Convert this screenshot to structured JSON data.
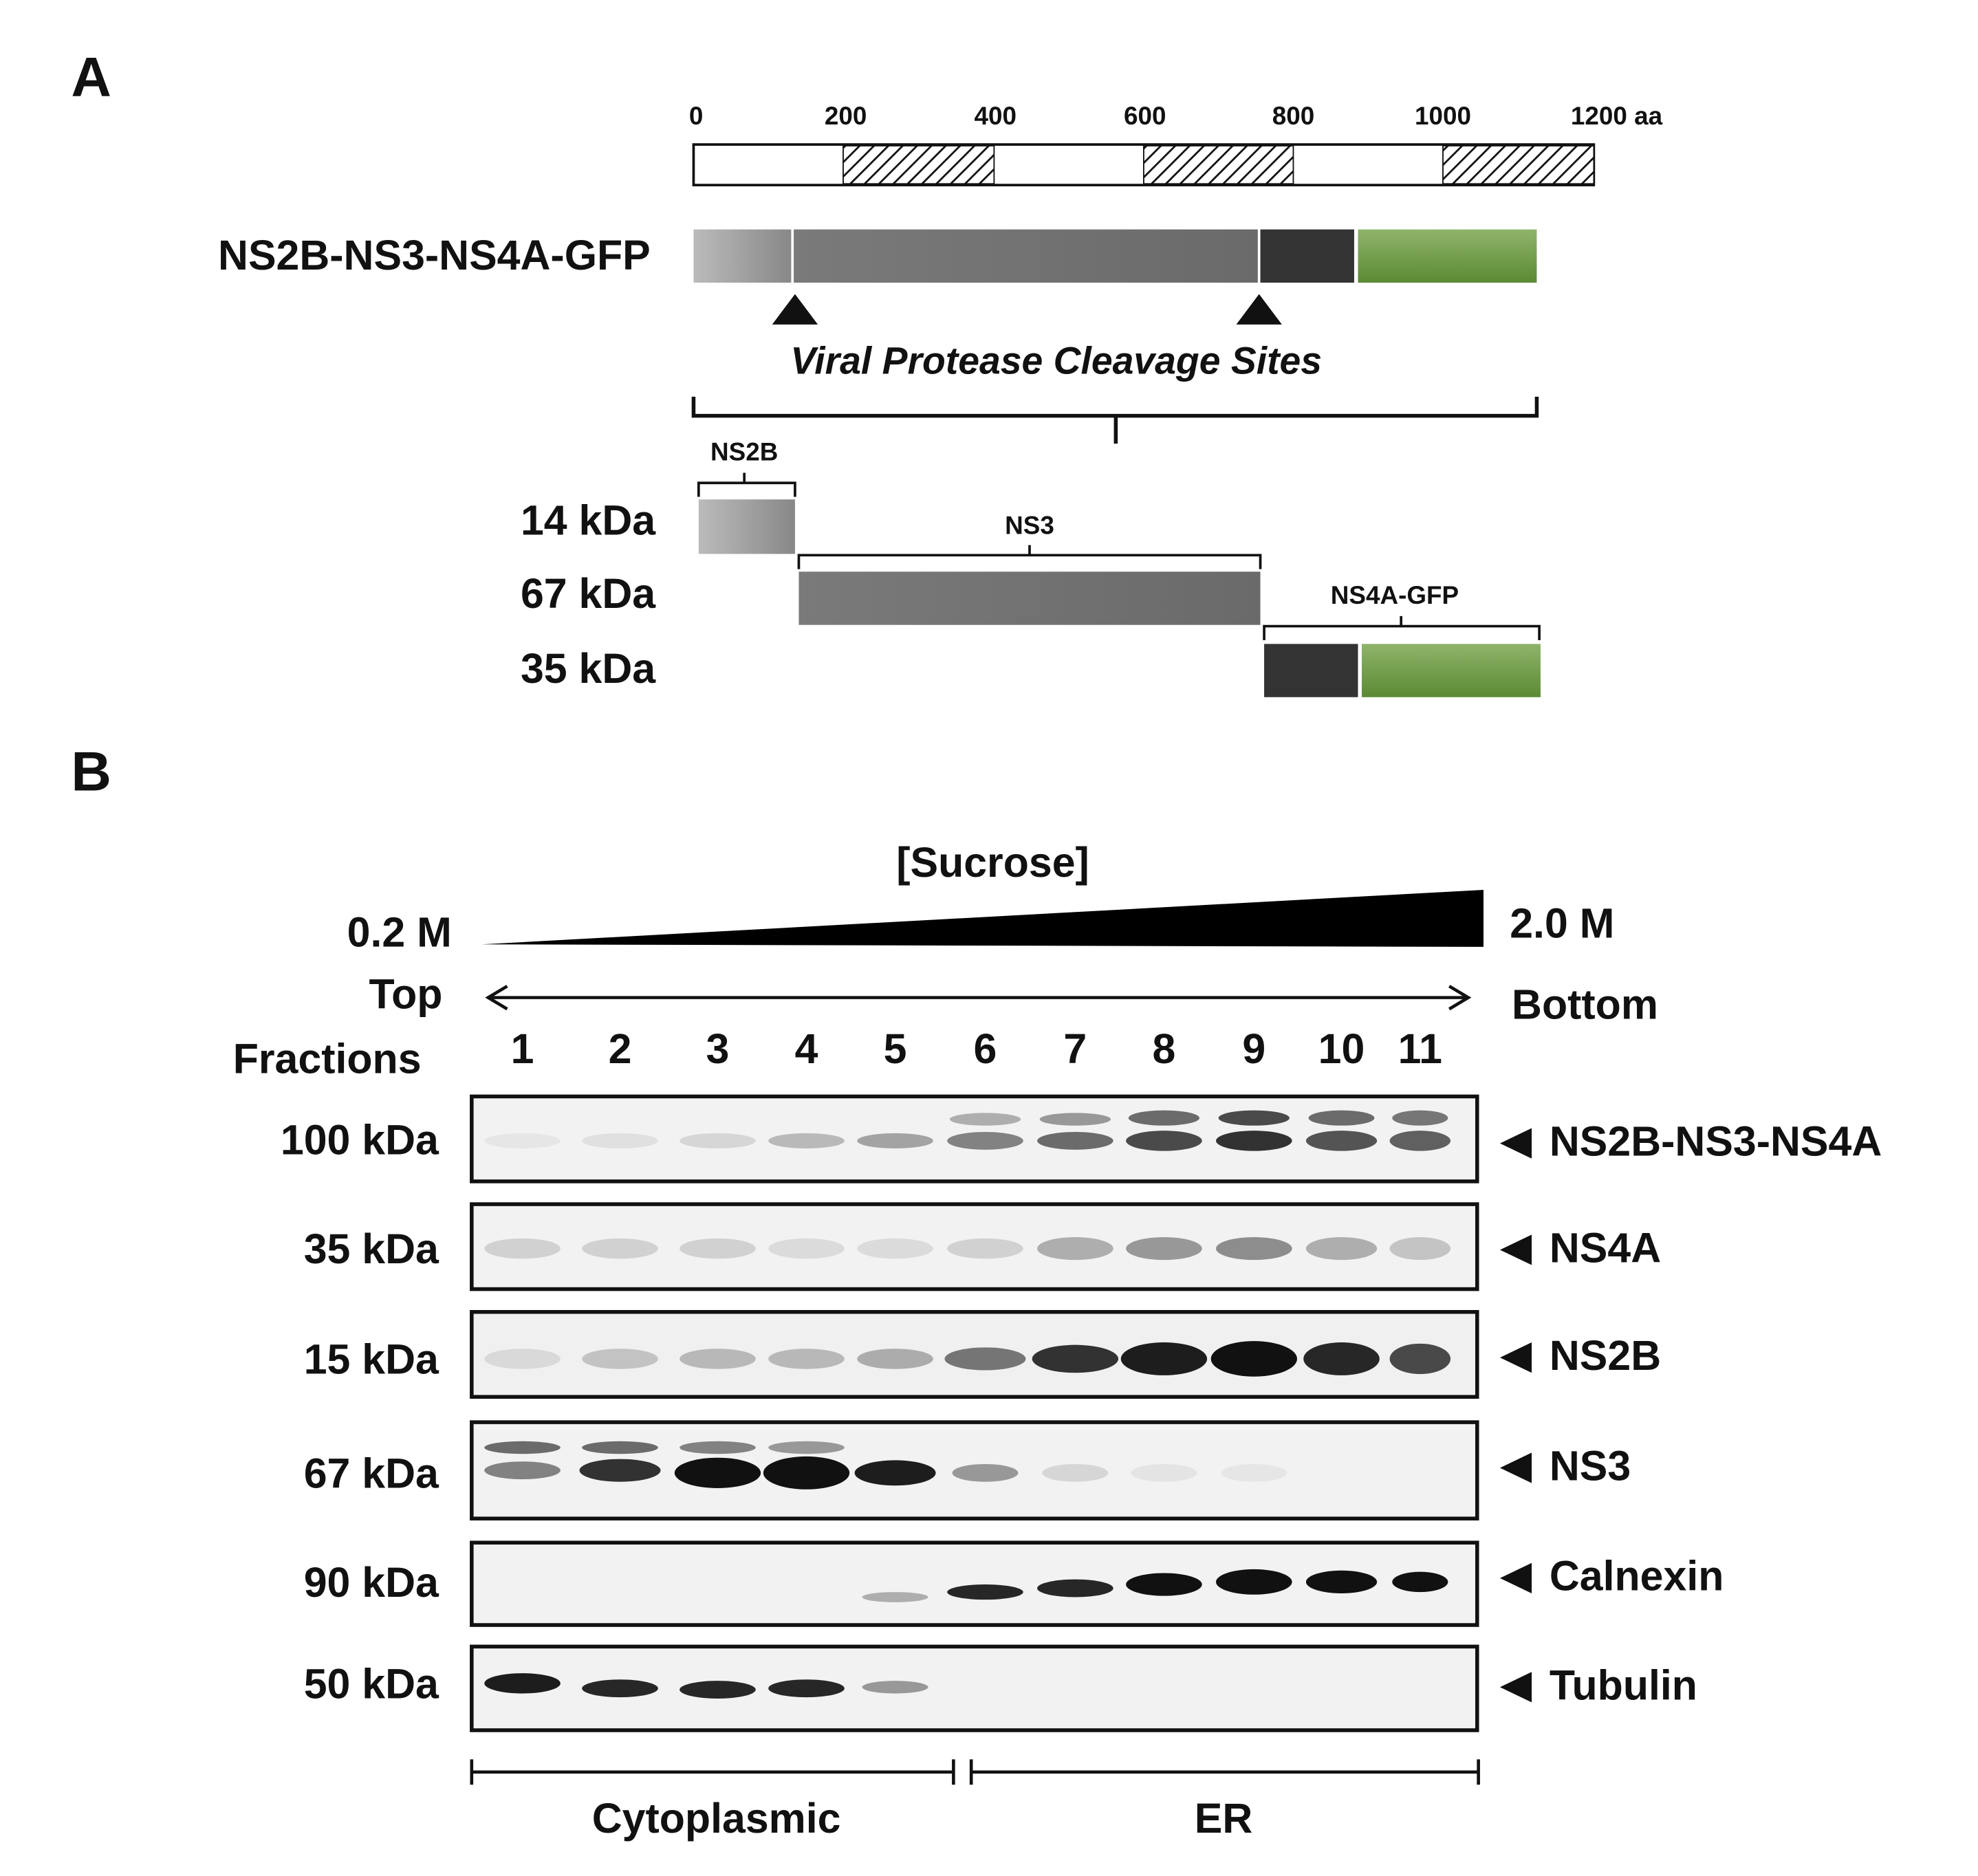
{
  "panel_a": {
    "label": "A",
    "scale_ticks": [
      "0",
      "200",
      "400",
      "600",
      "800",
      "1000",
      "1200 aa"
    ],
    "construct": "NS2B-NS3-NS4A-GFP",
    "cleavage_label": "Viral Protease Cleavage Sites",
    "fragments": [
      {
        "name": "NS2B",
        "size": "14 kDa"
      },
      {
        "name": "NS3",
        "size": "67 kDa"
      },
      {
        "name": "NS4A-GFP",
        "size": "35 kDa"
      }
    ]
  },
  "panel_b": {
    "label": "B",
    "gradient_label": "[Sucrose]",
    "low": "0.2 M",
    "high": "2.0 M",
    "top": "Top",
    "bottom": "Bottom",
    "fractions_label": "Fractions",
    "fractions": [
      "1",
      "2",
      "3",
      "4",
      "5",
      "6",
      "7",
      "8",
      "9",
      "10",
      "11"
    ],
    "blots": [
      {
        "size": "100 kDa",
        "name": "NS2B-NS3-NS4A"
      },
      {
        "size": "35 kDa",
        "name": "NS4A"
      },
      {
        "size": "15 kDa",
        "name": "NS2B"
      },
      {
        "size": "67 kDa",
        "name": "NS3"
      },
      {
        "size": "90 kDa",
        "name": "Calnexin"
      },
      {
        "size": "50 kDa",
        "name": "Tubulin"
      }
    ],
    "groups": [
      "Cytoplasmic",
      "ER"
    ]
  }
}
